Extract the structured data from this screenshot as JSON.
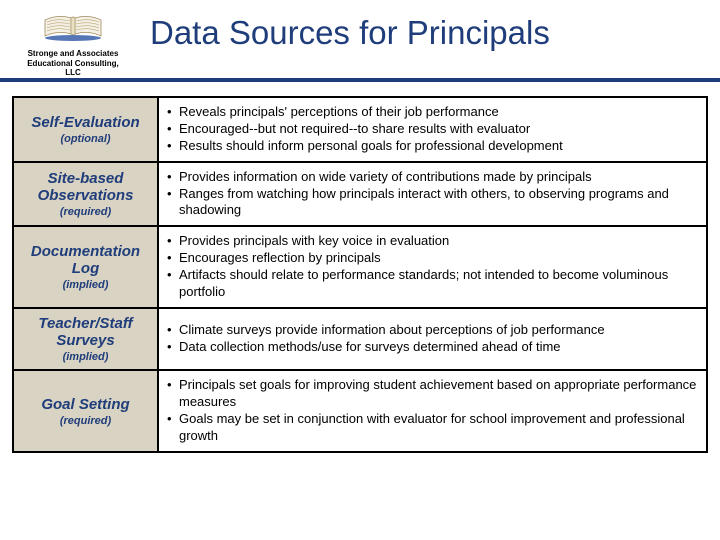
{
  "header": {
    "logo_line1": "Stronge and Associates",
    "logo_line2": "Educational Consulting,",
    "logo_line3": "LLC",
    "title": "Data Sources for Principals"
  },
  "colors": {
    "accent": "#1f3d7a",
    "label_bg": "#d9d3c3",
    "border": "#000000",
    "bg": "#ffffff"
  },
  "rows": [
    {
      "title": "Self-Evaluation",
      "sub": "(optional)",
      "bullets": [
        "Reveals principals' perceptions of their job performance",
        "Encouraged--but not required--to share results with evaluator",
        "Results should inform personal goals for professional development"
      ]
    },
    {
      "title": "Site-based Observations",
      "sub": "(required)",
      "bullets": [
        "Provides information on wide variety of contributions made by principals",
        "Ranges from watching how principals interact with others, to observing programs and shadowing"
      ]
    },
    {
      "title": "Documentation Log",
      "sub": "(implied)",
      "bullets": [
        "Provides principals with key voice in evaluation",
        "Encourages reflection by principals",
        "Artifacts should relate to performance standards; not intended to become voluminous portfolio"
      ]
    },
    {
      "title": "Teacher/Staff Surveys",
      "sub": "(implied)",
      "bullets": [
        "Climate surveys provide information about perceptions of job performance",
        "Data collection methods/use for surveys determined ahead of time"
      ]
    },
    {
      "title": "Goal Setting",
      "sub": "(required)",
      "bullets": [
        "Principals set goals for improving student achievement based on appropriate performance measures",
        "Goals may be set in conjunction with evaluator for school improvement and professional growth"
      ]
    }
  ]
}
